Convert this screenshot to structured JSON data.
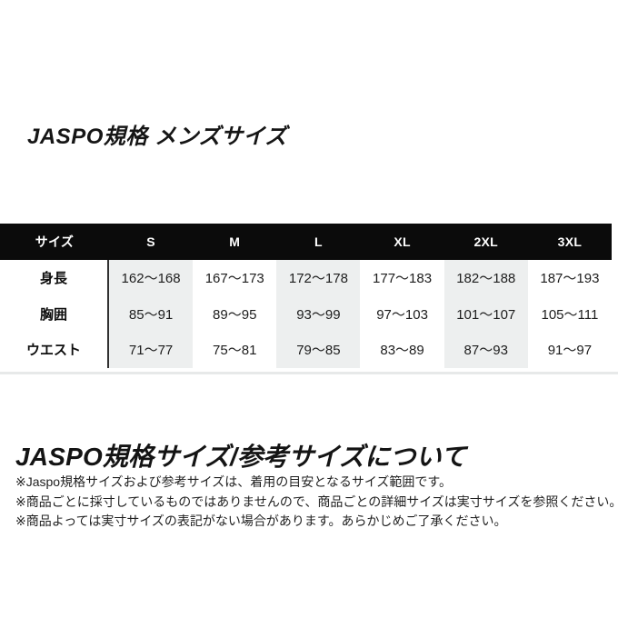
{
  "page": {
    "title": "JASPO規格 メンズサイズ",
    "section_heading": "JASPO規格サイズ/参考サイズについて",
    "notes": [
      "※Jaspo規格サイズおよび参考サイズは、着用の目安となるサイズ範囲です。",
      "※商品ごとに採寸しているものではありませんので、商品ごとの詳細サイズは実寸サイズを参照ください。",
      "※商品よっては実寸サイズの表記がない場合があります。あらかじめご了承ください。"
    ]
  },
  "size_table": {
    "header": [
      "サイズ",
      "S",
      "M",
      "L",
      "XL",
      "2XL",
      "3XL"
    ],
    "rows": [
      {
        "label": "身長",
        "values": [
          "162〜168",
          "167〜173",
          "172〜178",
          "177〜183",
          "182〜188",
          "187〜193"
        ]
      },
      {
        "label": "胸囲",
        "values": [
          "85〜91",
          "89〜95",
          "93〜99",
          "97〜103",
          "101〜107",
          "105〜111"
        ]
      },
      {
        "label": "ウエスト",
        "values": [
          "71〜77",
          "75〜81",
          "79〜85",
          "83〜89",
          "87〜93",
          "91〜97"
        ]
      }
    ],
    "striped_column_labels": [
      "S",
      "L",
      "2XL"
    ],
    "colors": {
      "header_bg": "#0b0b0b",
      "header_text": "#ffffff",
      "stripe_bg": "#edefef",
      "label_divider": "#303030",
      "bottom_rule": "#e7e9e9"
    }
  }
}
